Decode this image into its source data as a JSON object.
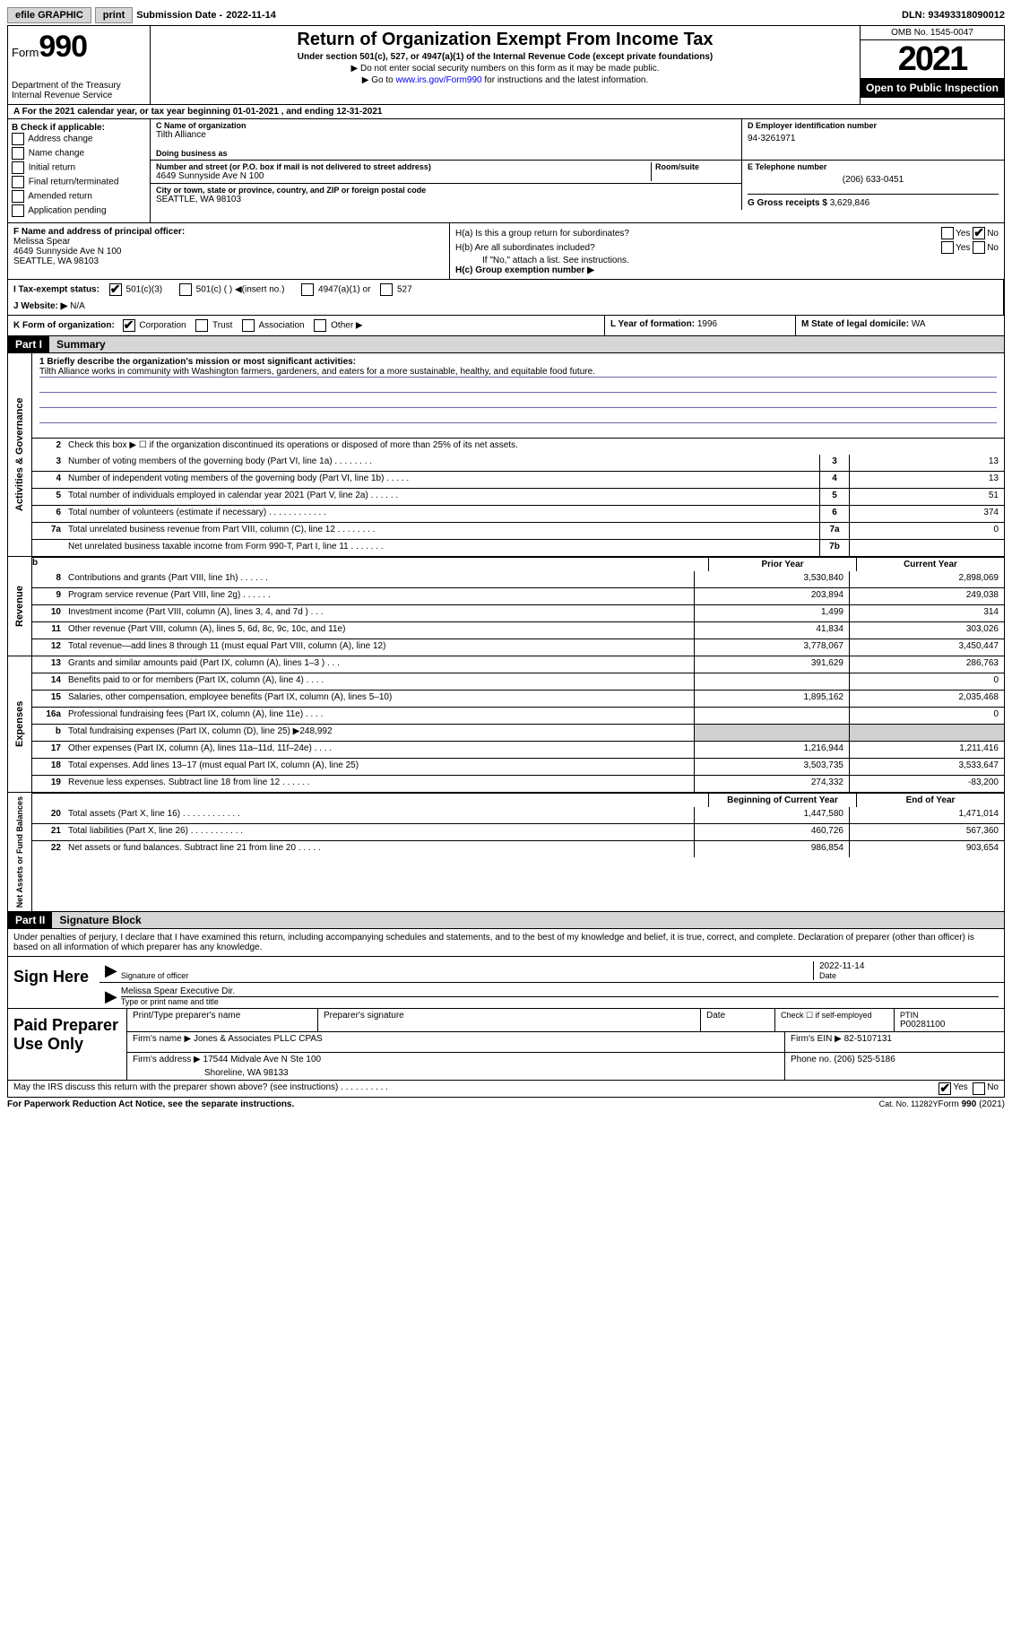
{
  "topbar": {
    "efile": "efile GRAPHIC",
    "print": "print",
    "sub_label": "Submission Date -",
    "sub_date": "2022-11-14",
    "dln_label": "DLN:",
    "dln": "93493318090012"
  },
  "header": {
    "form_label": "Form",
    "form_no": "990",
    "dept": "Department of the Treasury\nInternal Revenue Service",
    "title": "Return of Organization Exempt From Income Tax",
    "subtitle": "Under section 501(c), 527, or 4947(a)(1) of the Internal Revenue Code (except private foundations)",
    "note1": "Do not enter social security numbers on this form as it may be made public.",
    "note2_pre": "Go to ",
    "note2_link": "www.irs.gov/Form990",
    "note2_post": " for instructions and the latest information.",
    "omb": "OMB No. 1545-0047",
    "year": "2021",
    "inspect": "Open to Public Inspection"
  },
  "line_a": "A For the 2021 calendar year, or tax year beginning 01-01-2021   , and ending 12-31-2021",
  "box_b": {
    "label": "B Check if applicable:",
    "items": [
      "Address change",
      "Name change",
      "Initial return",
      "Final return/terminated",
      "Amended return",
      "Application pending"
    ]
  },
  "box_c": {
    "name_label": "C Name of organization",
    "name": "Tilth Alliance",
    "dba_label": "Doing business as",
    "street_label": "Number and street (or P.O. box if mail is not delivered to street address)",
    "room_label": "Room/suite",
    "street": "4649 Sunnyside Ave N 100",
    "city_label": "City or town, state or province, country, and ZIP or foreign postal code",
    "city": "SEATTLE, WA  98103"
  },
  "box_d": {
    "label": "D Employer identification number",
    "val": "94-3261971"
  },
  "box_e": {
    "label": "E Telephone number",
    "val": "(206) 633-0451"
  },
  "box_g": {
    "label": "G Gross receipts $",
    "val": "3,629,846"
  },
  "box_f": {
    "label": "F  Name and address of principal officer:",
    "name": "Melissa Spear",
    "addr1": "4649 Sunnyside Ave N 100",
    "addr2": "SEATTLE, WA  98103"
  },
  "box_h": {
    "a": "H(a)  Is this a group return for subordinates?",
    "b": "H(b)  Are all subordinates included?",
    "note": "If \"No,\" attach a list. See instructions.",
    "c": "H(c)  Group exemption number ▶",
    "yes": "Yes",
    "no": "No"
  },
  "box_i": {
    "label": "I   Tax-exempt status:",
    "opts": [
      "501(c)(3)",
      "501(c) (  ) ◀(insert no.)",
      "4947(a)(1) or",
      "527"
    ]
  },
  "box_j": {
    "label": "J   Website: ▶",
    "val": "N/A"
  },
  "box_k": {
    "label": "K Form of organization:",
    "opts": [
      "Corporation",
      "Trust",
      "Association",
      "Other ▶"
    ]
  },
  "box_l": {
    "label": "L Year of formation:",
    "val": "1996"
  },
  "box_m": {
    "label": "M State of legal domicile:",
    "val": "WA"
  },
  "part1": {
    "hdr": "Part I",
    "title": "Summary"
  },
  "mission": {
    "label": "1   Briefly describe the organization's mission or most significant activities:",
    "text": "Tilth Alliance works in community with Washington farmers, gardeners, and eaters for a more sustainable, healthy, and equitable food future."
  },
  "line2": "Check this box ▶ ☐  if the organization discontinued its operations or disposed of more than 25% of its net assets.",
  "gov_lines": [
    {
      "n": "3",
      "d": "Number of voting members of the governing body (Part VI, line 1a)   .    .    .    .    .    .    .    .",
      "b": "3",
      "v": "13"
    },
    {
      "n": "4",
      "d": "Number of independent voting members of the governing body (Part VI, line 1b)   .    .    .    .    .",
      "b": "4",
      "v": "13"
    },
    {
      "n": "5",
      "d": "Total number of individuals employed in calendar year 2021 (Part V, line 2a)   .    .    .    .    .    .",
      "b": "5",
      "v": "51"
    },
    {
      "n": "6",
      "d": "Total number of volunteers (estimate if necessary)    .    .    .    .    .    .    .    .    .    .    .    .",
      "b": "6",
      "v": "374"
    },
    {
      "n": "7a",
      "d": "Total unrelated business revenue from Part VIII, column (C), line 12    .    .    .    .    .    .    .    .",
      "b": "7a",
      "v": "0"
    },
    {
      "n": "",
      "d": "Net unrelated business taxable income from Form 990-T, Part I, line 11   .    .    .    .    .    .    .",
      "b": "7b",
      "v": ""
    }
  ],
  "cols": {
    "prior": "Prior Year",
    "current": "Current Year",
    "beg": "Beginning of Current Year",
    "end": "End of Year"
  },
  "rev_b": {
    "n": "b",
    "d": ""
  },
  "revenue": [
    {
      "n": "8",
      "d": "Contributions and grants (Part VIII, line 1h)   .    .    .    .    .    .",
      "p": "3,530,840",
      "c": "2,898,069"
    },
    {
      "n": "9",
      "d": "Program service revenue (Part VIII, line 2g)    .    .    .    .    .    .",
      "p": "203,894",
      "c": "249,038"
    },
    {
      "n": "10",
      "d": "Investment income (Part VIII, column (A), lines 3, 4, and 7d )   .    .    .",
      "p": "1,499",
      "c": "314"
    },
    {
      "n": "11",
      "d": "Other revenue (Part VIII, column (A), lines 5, 6d, 8c, 9c, 10c, and 11e)",
      "p": "41,834",
      "c": "303,026"
    },
    {
      "n": "12",
      "d": "Total revenue—add lines 8 through 11 (must equal Part VIII, column (A), line 12)",
      "p": "3,778,067",
      "c": "3,450,447"
    }
  ],
  "expenses": [
    {
      "n": "13",
      "d": "Grants and similar amounts paid (Part IX, column (A), lines 1–3 )   .    .    .",
      "p": "391,629",
      "c": "286,763"
    },
    {
      "n": "14",
      "d": "Benefits paid to or for members (Part IX, column (A), line 4)   .    .    .    .",
      "p": "",
      "c": "0"
    },
    {
      "n": "15",
      "d": "Salaries, other compensation, employee benefits (Part IX, column (A), lines 5–10)",
      "p": "1,895,162",
      "c": "2,035,468"
    },
    {
      "n": "16a",
      "d": "Professional fundraising fees (Part IX, column (A), line 11e)   .    .    .    .",
      "p": "",
      "c": "0"
    },
    {
      "n": "b",
      "d": "Total fundraising expenses (Part IX, column (D), line 25) ▶248,992",
      "p": "shade",
      "c": "shade"
    },
    {
      "n": "17",
      "d": "Other expenses (Part IX, column (A), lines 11a–11d, 11f–24e)   .    .    .    .",
      "p": "1,216,944",
      "c": "1,211,416"
    },
    {
      "n": "18",
      "d": "Total expenses. Add lines 13–17 (must equal Part IX, column (A), line 25)",
      "p": "3,503,735",
      "c": "3,533,647"
    },
    {
      "n": "19",
      "d": "Revenue less expenses. Subtract line 18 from line 12   .    .    .    .    .    .",
      "p": "274,332",
      "c": "-83,200"
    }
  ],
  "netassets": [
    {
      "n": "20",
      "d": "Total assets (Part X, line 16)   .    .    .    .    .    .    .    .    .    .    .    .",
      "p": "1,447,580",
      "c": "1,471,014"
    },
    {
      "n": "21",
      "d": "Total liabilities (Part X, line 26)   .    .    .    .    .    .    .    .    .    .    .",
      "p": "460,726",
      "c": "567,360"
    },
    {
      "n": "22",
      "d": "Net assets or fund balances. Subtract line 21 from line 20   .    .    .    .    .",
      "p": "986,854",
      "c": "903,654"
    }
  ],
  "sides": {
    "gov": "Activities & Governance",
    "rev": "Revenue",
    "exp": "Expenses",
    "net": "Net Assets or Fund Balances"
  },
  "part2": {
    "hdr": "Part II",
    "title": "Signature Block"
  },
  "sig_decl": "Under penalties of perjury, I declare that I have examined this return, including accompanying schedules and statements, and to the best of my knowledge and belief, it is true, correct, and complete. Declaration of preparer (other than officer) is based on all information of which preparer has any knowledge.",
  "sign": {
    "here": "Sign Here",
    "sig_label": "Signature of officer",
    "date_label": "Date",
    "date": "2022-11-14",
    "name": "Melissa Spear  Executive Dir.",
    "name_label": "Type or print name and title"
  },
  "prep": {
    "label": "Paid Preparer Use Only",
    "h1": "Print/Type preparer's name",
    "h2": "Preparer's signature",
    "h3": "Date",
    "h4_pre": "Check ☐ if self-employed",
    "h5": "PTIN",
    "ptin": "P00281100",
    "firm_label": "Firm's name   ▶",
    "firm": "Jones & Associates PLLC CPAS",
    "ein_label": "Firm's EIN ▶",
    "ein": "82-5107131",
    "addr_label": "Firm's address ▶",
    "addr": "17544 Midvale Ave N Ste 100",
    "addr2": "Shoreline, WA  98133",
    "phone_label": "Phone no.",
    "phone": "(206) 525-5186"
  },
  "discuss": "May the IRS discuss this return with the preparer shown above? (see instructions)   .    .    .    .    .    .    .    .    .    .",
  "footer": {
    "pra": "For Paperwork Reduction Act Notice, see the separate instructions.",
    "cat": "Cat. No. 11282Y",
    "form": "Form 990 (2021)"
  }
}
